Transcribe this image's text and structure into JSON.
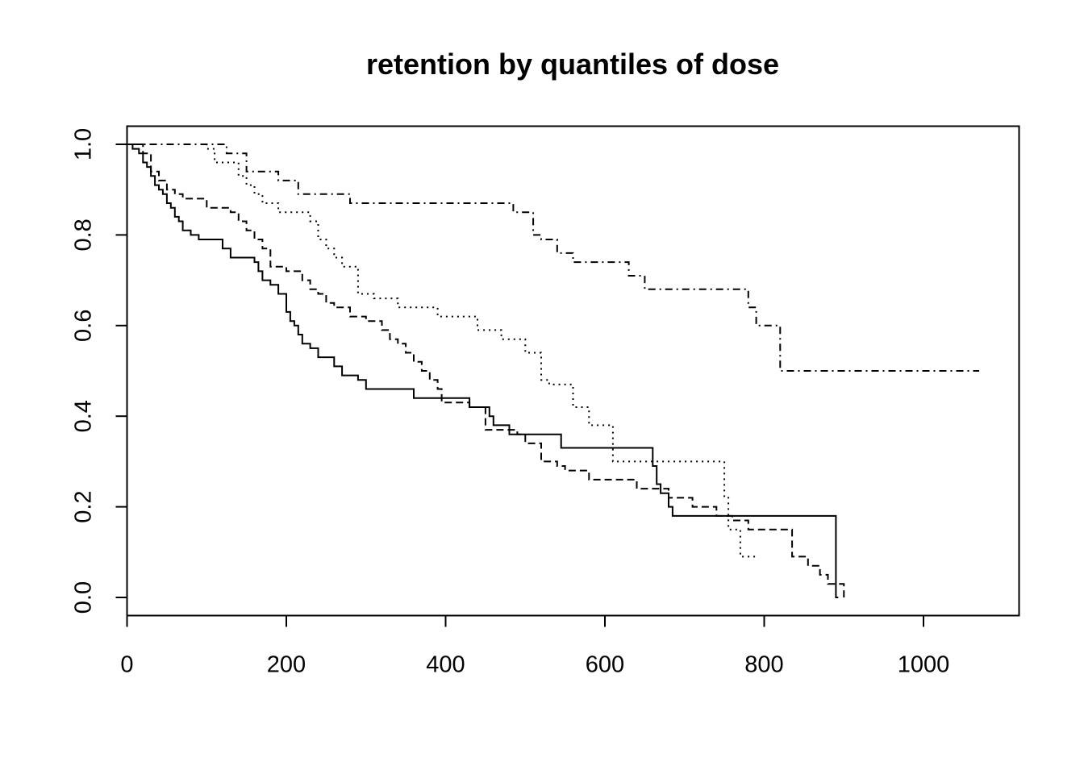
{
  "chart_data": {
    "type": "line",
    "subtype": "step",
    "title": "retention by quantiles of dose",
    "xlabel": "",
    "ylabel": "",
    "xlim": [
      0,
      1120
    ],
    "ylim": [
      -0.04,
      1.04
    ],
    "x_ticks": [
      0,
      200,
      400,
      600,
      800,
      1000
    ],
    "x_tick_labels": [
      "0",
      "200",
      "400",
      "600",
      "800",
      "1000"
    ],
    "y_ticks": [
      0.0,
      0.2,
      0.4,
      0.6,
      0.8,
      1.0
    ],
    "y_tick_labels": [
      "0.0",
      "0.2",
      "0.4",
      "0.6",
      "0.8",
      "1.0"
    ],
    "grid": false,
    "legend": "none",
    "color": "#000000",
    "series": [
      {
        "dash": "solid",
        "x": [
          0,
          7,
          15,
          20,
          25,
          30,
          35,
          40,
          45,
          50,
          55,
          60,
          65,
          70,
          80,
          90,
          120,
          130,
          160,
          165,
          170,
          180,
          190,
          200,
          205,
          210,
          215,
          220,
          230,
          240,
          260,
          270,
          290,
          300,
          360,
          365,
          370,
          430,
          455,
          460,
          480,
          545,
          660,
          665,
          670,
          680,
          685,
          890,
          893
        ],
        "y": [
          1.0,
          0.99,
          0.98,
          0.96,
          0.95,
          0.93,
          0.91,
          0.9,
          0.89,
          0.87,
          0.86,
          0.84,
          0.83,
          0.81,
          0.8,
          0.79,
          0.77,
          0.75,
          0.74,
          0.72,
          0.7,
          0.69,
          0.67,
          0.63,
          0.61,
          0.6,
          0.58,
          0.56,
          0.55,
          0.53,
          0.51,
          0.49,
          0.48,
          0.46,
          0.44,
          0.44,
          0.44,
          0.42,
          0.4,
          0.38,
          0.36,
          0.33,
          0.29,
          0.25,
          0.23,
          0.2,
          0.18,
          0.0,
          0.0
        ]
      },
      {
        "dash": "dashed",
        "x": [
          0,
          20,
          30,
          40,
          50,
          60,
          70,
          100,
          120,
          130,
          140,
          150,
          160,
          170,
          180,
          190,
          200,
          220,
          230,
          240,
          250,
          260,
          280,
          300,
          320,
          330,
          340,
          350,
          360,
          370,
          380,
          390,
          395,
          430,
          450,
          490,
          500,
          520,
          540,
          550,
          580,
          640,
          680,
          710,
          740,
          760,
          780,
          835,
          855,
          870,
          880,
          890,
          900
        ],
        "y": [
          1.0,
          0.98,
          0.94,
          0.92,
          0.9,
          0.89,
          0.88,
          0.86,
          0.86,
          0.85,
          0.83,
          0.81,
          0.79,
          0.77,
          0.73,
          0.73,
          0.72,
          0.7,
          0.68,
          0.67,
          0.65,
          0.64,
          0.62,
          0.61,
          0.59,
          0.57,
          0.56,
          0.54,
          0.52,
          0.5,
          0.48,
          0.46,
          0.43,
          0.42,
          0.37,
          0.36,
          0.34,
          0.3,
          0.29,
          0.28,
          0.26,
          0.24,
          0.22,
          0.2,
          0.18,
          0.17,
          0.15,
          0.09,
          0.07,
          0.05,
          0.03,
          0.03,
          0.0
        ]
      },
      {
        "dash": "dotted",
        "x": [
          0,
          80,
          100,
          110,
          140,
          150,
          160,
          170,
          190,
          200,
          230,
          240,
          250,
          260,
          270,
          290,
          310,
          340,
          390,
          440,
          470,
          500,
          520,
          530,
          560,
          580,
          610,
          640,
          750,
          755,
          770,
          790
        ],
        "y": [
          1.0,
          1.0,
          0.99,
          0.96,
          0.93,
          0.91,
          0.89,
          0.87,
          0.85,
          0.85,
          0.83,
          0.79,
          0.77,
          0.75,
          0.73,
          0.67,
          0.66,
          0.64,
          0.62,
          0.59,
          0.57,
          0.54,
          0.48,
          0.47,
          0.42,
          0.38,
          0.3,
          0.3,
          0.22,
          0.15,
          0.09,
          0.09
        ]
      },
      {
        "dash": "dotdash",
        "x": [
          0,
          125,
          150,
          190,
          215,
          280,
          420,
          485,
          510,
          520,
          540,
          560,
          630,
          650,
          780,
          790,
          820,
          1070
        ],
        "y": [
          1.0,
          0.98,
          0.94,
          0.92,
          0.89,
          0.87,
          0.87,
          0.85,
          0.8,
          0.79,
          0.76,
          0.74,
          0.71,
          0.68,
          0.64,
          0.6,
          0.5,
          0.5
        ]
      }
    ]
  }
}
